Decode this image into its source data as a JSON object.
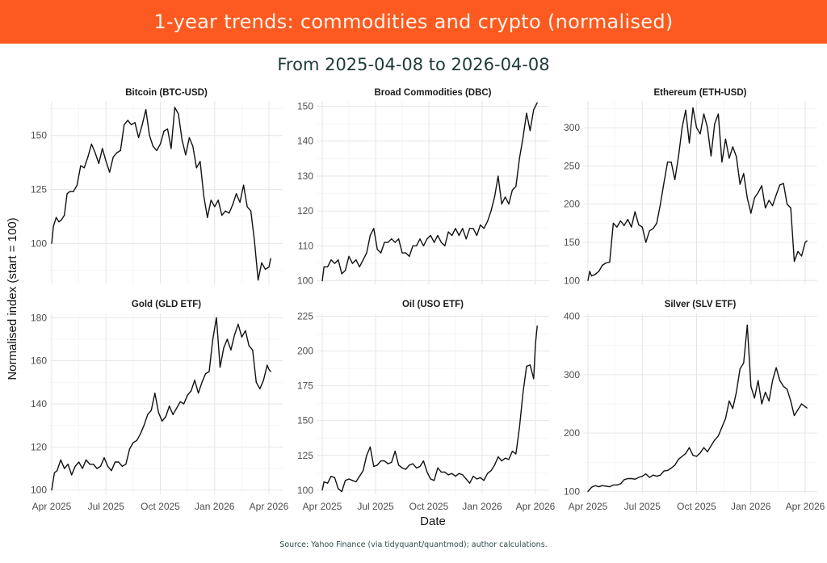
{
  "header": {
    "title": "1-year trends: commodities and crypto (normalised)",
    "subtitle": "From 2025-04-08 to 2026-04-08"
  },
  "footer": {
    "source": "Source: Yahoo Finance (via tidyquant/quantmod); author calculations."
  },
  "colors": {
    "banner": "#fc5a20",
    "line": "#111111"
  },
  "chart_data": {
    "type": "line",
    "xlabel": "Date",
    "ylabel": "Normalised index (start = 100)",
    "x_ticks": [
      "Apr 2025",
      "Jul 2025",
      "Oct 2025",
      "Jan 2026",
      "Apr 2026"
    ],
    "x_range_months": [
      0,
      12
    ],
    "grid": true,
    "panels": [
      {
        "title": "Bitcoin (BTC-USD)",
        "ylim": [
          81,
          166
        ],
        "y_ticks": [
          100,
          125,
          150
        ],
        "x_months": [
          0,
          0.1,
          0.25,
          0.4,
          0.55,
          0.7,
          0.85,
          1.0,
          1.2,
          1.4,
          1.6,
          1.8,
          2.0,
          2.2,
          2.4,
          2.6,
          2.8,
          3.0,
          3.2,
          3.4,
          3.6,
          3.8,
          4.0,
          4.2,
          4.4,
          4.6,
          4.8,
          5.0,
          5.2,
          5.4,
          5.6,
          5.8,
          6.0,
          6.2,
          6.4,
          6.6,
          6.8,
          7.0,
          7.2,
          7.4,
          7.6,
          7.8,
          8.0,
          8.2,
          8.4,
          8.6,
          8.8,
          9.0,
          9.2,
          9.4,
          9.6,
          9.8,
          10.0,
          10.2,
          10.4,
          10.6,
          10.8,
          11.0,
          11.2,
          11.4,
          11.6,
          11.8,
          12.0,
          12.1
        ],
        "values": [
          100,
          108,
          112,
          110,
          111,
          113,
          123,
          124,
          124,
          127,
          136,
          135,
          140,
          146,
          142,
          137,
          144,
          138,
          133,
          140,
          142,
          143,
          155,
          157,
          155,
          156,
          149,
          155,
          162,
          150,
          145,
          143,
          146,
          152,
          153,
          144,
          163,
          160,
          148,
          141,
          149,
          145,
          135,
          138,
          122,
          112,
          120,
          117,
          120,
          113,
          115,
          114,
          118,
          123,
          119,
          127,
          117,
          115,
          101,
          83,
          91,
          88,
          89,
          93
        ]
      },
      {
        "title": "Broad Commodities (DBC)",
        "ylim": [
          99,
          151.5
        ],
        "y_ticks": [
          100,
          110,
          120,
          130,
          140,
          150
        ],
        "x_months": [
          0,
          0.1,
          0.3,
          0.5,
          0.7,
          0.9,
          1.1,
          1.3,
          1.5,
          1.7,
          1.9,
          2.1,
          2.3,
          2.5,
          2.7,
          2.9,
          3.1,
          3.3,
          3.5,
          3.7,
          3.9,
          4.1,
          4.3,
          4.5,
          4.7,
          4.9,
          5.1,
          5.3,
          5.5,
          5.7,
          5.9,
          6.1,
          6.3,
          6.5,
          6.7,
          6.9,
          7.1,
          7.3,
          7.5,
          7.7,
          7.9,
          8.1,
          8.3,
          8.5,
          8.7,
          8.9,
          9.1,
          9.3,
          9.5,
          9.7,
          9.9,
          10.1,
          10.3,
          10.5,
          10.7,
          10.9,
          11.1,
          11.3,
          11.5,
          11.7,
          11.9,
          12.1
        ],
        "values": [
          100,
          104,
          104,
          106,
          105,
          106,
          102,
          103,
          107,
          105,
          106,
          104,
          106,
          108,
          113,
          115,
          109,
          108,
          111,
          111,
          112,
          111,
          112,
          108,
          108,
          107,
          110,
          110,
          112,
          110,
          112,
          113,
          111,
          113,
          111,
          110,
          114,
          113,
          115,
          113,
          115,
          112,
          115,
          115,
          113,
          116,
          115,
          117,
          120,
          124,
          130,
          122,
          124,
          122,
          126,
          127,
          135,
          141,
          148,
          143,
          149,
          151
        ]
      },
      {
        "title": "Ethereum (ETH-USD)",
        "ylim": [
          95,
          335
        ],
        "y_ticks": [
          100,
          150,
          200,
          250,
          300
        ],
        "x_months": [
          0,
          0.1,
          0.2,
          0.4,
          0.6,
          0.8,
          1.0,
          1.2,
          1.4,
          1.6,
          1.8,
          2.0,
          2.2,
          2.4,
          2.6,
          2.8,
          3.0,
          3.2,
          3.4,
          3.6,
          3.8,
          4.0,
          4.2,
          4.4,
          4.6,
          4.8,
          5.0,
          5.2,
          5.4,
          5.6,
          5.8,
          6.0,
          6.2,
          6.4,
          6.6,
          6.8,
          7.0,
          7.2,
          7.4,
          7.6,
          7.8,
          8.0,
          8.2,
          8.4,
          8.6,
          8.8,
          9.0,
          9.2,
          9.4,
          9.6,
          9.8,
          10.0,
          10.2,
          10.4,
          10.6,
          10.8,
          11.0,
          11.2,
          11.4,
          11.6,
          11.8,
          12.0,
          12.1
        ],
        "values": [
          100,
          112,
          106,
          108,
          112,
          120,
          123,
          124,
          175,
          170,
          178,
          172,
          180,
          170,
          190,
          173,
          170,
          150,
          165,
          168,
          175,
          200,
          228,
          255,
          255,
          232,
          262,
          300,
          323,
          280,
          326,
          300,
          292,
          318,
          300,
          263,
          305,
          318,
          255,
          285,
          260,
          275,
          262,
          226,
          240,
          208,
          188,
          208,
          215,
          224,
          195,
          205,
          198,
          212,
          225,
          227,
          200,
          195,
          125,
          138,
          132,
          150,
          152
        ]
      },
      {
        "title": "Gold (GLD ETF)",
        "ylim": [
          98,
          182
        ],
        "y_ticks": [
          100,
          120,
          140,
          160,
          180
        ],
        "x_months": [
          0,
          0.15,
          0.3,
          0.5,
          0.7,
          0.9,
          1.1,
          1.3,
          1.5,
          1.7,
          1.9,
          2.1,
          2.3,
          2.5,
          2.7,
          2.9,
          3.1,
          3.3,
          3.5,
          3.7,
          3.9,
          4.1,
          4.3,
          4.5,
          4.7,
          4.9,
          5.1,
          5.3,
          5.5,
          5.7,
          5.9,
          6.1,
          6.3,
          6.5,
          6.7,
          6.9,
          7.1,
          7.3,
          7.5,
          7.7,
          7.9,
          8.1,
          8.3,
          8.5,
          8.7,
          8.9,
          9.1,
          9.3,
          9.5,
          9.7,
          9.9,
          10.1,
          10.3,
          10.5,
          10.7,
          10.9,
          11.1,
          11.3,
          11.5,
          11.7,
          11.9,
          12.0,
          12.1
        ],
        "values": [
          100,
          108,
          109,
          114,
          110,
          112,
          107,
          111,
          113,
          110,
          114,
          112,
          112,
          110,
          111,
          115,
          111,
          109,
          113,
          113,
          111,
          112,
          119,
          122,
          123,
          126,
          130,
          135,
          137,
          145,
          136,
          132,
          134,
          139,
          135,
          138,
          141,
          140,
          144,
          146,
          151,
          145,
          150,
          154,
          155,
          170,
          180,
          157,
          166,
          170,
          165,
          172,
          177,
          171,
          174,
          167,
          165,
          150,
          147,
          151,
          158,
          156,
          155
        ]
      },
      {
        "title": "Oil (USO ETF)",
        "ylim": [
          97,
          227
        ],
        "y_ticks": [
          100,
          125,
          150,
          175,
          200,
          225
        ],
        "x_months": [
          0,
          0.1,
          0.3,
          0.5,
          0.7,
          0.9,
          1.1,
          1.3,
          1.5,
          1.7,
          1.9,
          2.1,
          2.3,
          2.5,
          2.7,
          2.9,
          3.1,
          3.3,
          3.5,
          3.7,
          3.9,
          4.1,
          4.3,
          4.5,
          4.7,
          4.9,
          5.1,
          5.3,
          5.5,
          5.7,
          5.9,
          6.1,
          6.3,
          6.5,
          6.7,
          6.9,
          7.1,
          7.3,
          7.5,
          7.7,
          7.9,
          8.1,
          8.3,
          8.5,
          8.7,
          8.9,
          9.1,
          9.3,
          9.5,
          9.7,
          9.9,
          10.1,
          10.3,
          10.5,
          10.7,
          10.9,
          11.1,
          11.3,
          11.5,
          11.7,
          11.9,
          12.0,
          12.1
        ],
        "values": [
          100,
          106,
          105,
          110,
          109,
          101,
          99,
          107,
          108,
          107,
          106,
          110,
          114,
          125,
          131,
          117,
          118,
          121,
          121,
          119,
          120,
          128,
          118,
          116,
          115,
          118,
          119,
          116,
          117,
          121,
          113,
          108,
          107,
          116,
          113,
          113,
          111,
          112,
          110,
          112,
          111,
          108,
          105,
          110,
          108,
          109,
          107,
          112,
          114,
          118,
          124,
          121,
          123,
          122,
          128,
          126,
          145,
          170,
          189,
          190,
          180,
          205,
          218
        ]
      },
      {
        "title": "Silver (SLV ETF)",
        "ylim": [
          95,
          405
        ],
        "y_ticks": [
          100,
          200,
          300,
          400
        ],
        "x_months": [
          0,
          0.2,
          0.4,
          0.6,
          0.8,
          1.0,
          1.2,
          1.4,
          1.6,
          1.8,
          2.0,
          2.2,
          2.4,
          2.6,
          2.8,
          3.0,
          3.2,
          3.4,
          3.6,
          3.8,
          4.0,
          4.2,
          4.4,
          4.6,
          4.8,
          5.0,
          5.2,
          5.4,
          5.6,
          5.8,
          6.0,
          6.2,
          6.4,
          6.6,
          6.8,
          7.0,
          7.2,
          7.4,
          7.6,
          7.8,
          8.0,
          8.2,
          8.4,
          8.6,
          8.8,
          9.0,
          9.2,
          9.4,
          9.6,
          9.8,
          10.0,
          10.2,
          10.4,
          10.6,
          10.8,
          11.0,
          11.2,
          11.4,
          11.6,
          11.8,
          12.0,
          12.1
        ],
        "values": [
          100,
          107,
          110,
          108,
          110,
          109,
          108,
          111,
          111,
          113,
          120,
          122,
          122,
          121,
          124,
          126,
          130,
          124,
          128,
          126,
          128,
          135,
          136,
          140,
          145,
          155,
          160,
          165,
          175,
          162,
          160,
          166,
          175,
          168,
          178,
          188,
          195,
          210,
          225,
          255,
          242,
          270,
          310,
          320,
          385,
          280,
          260,
          290,
          250,
          270,
          255,
          290,
          312,
          290,
          280,
          275,
          255,
          230,
          240,
          250,
          245,
          243
        ]
      }
    ]
  }
}
